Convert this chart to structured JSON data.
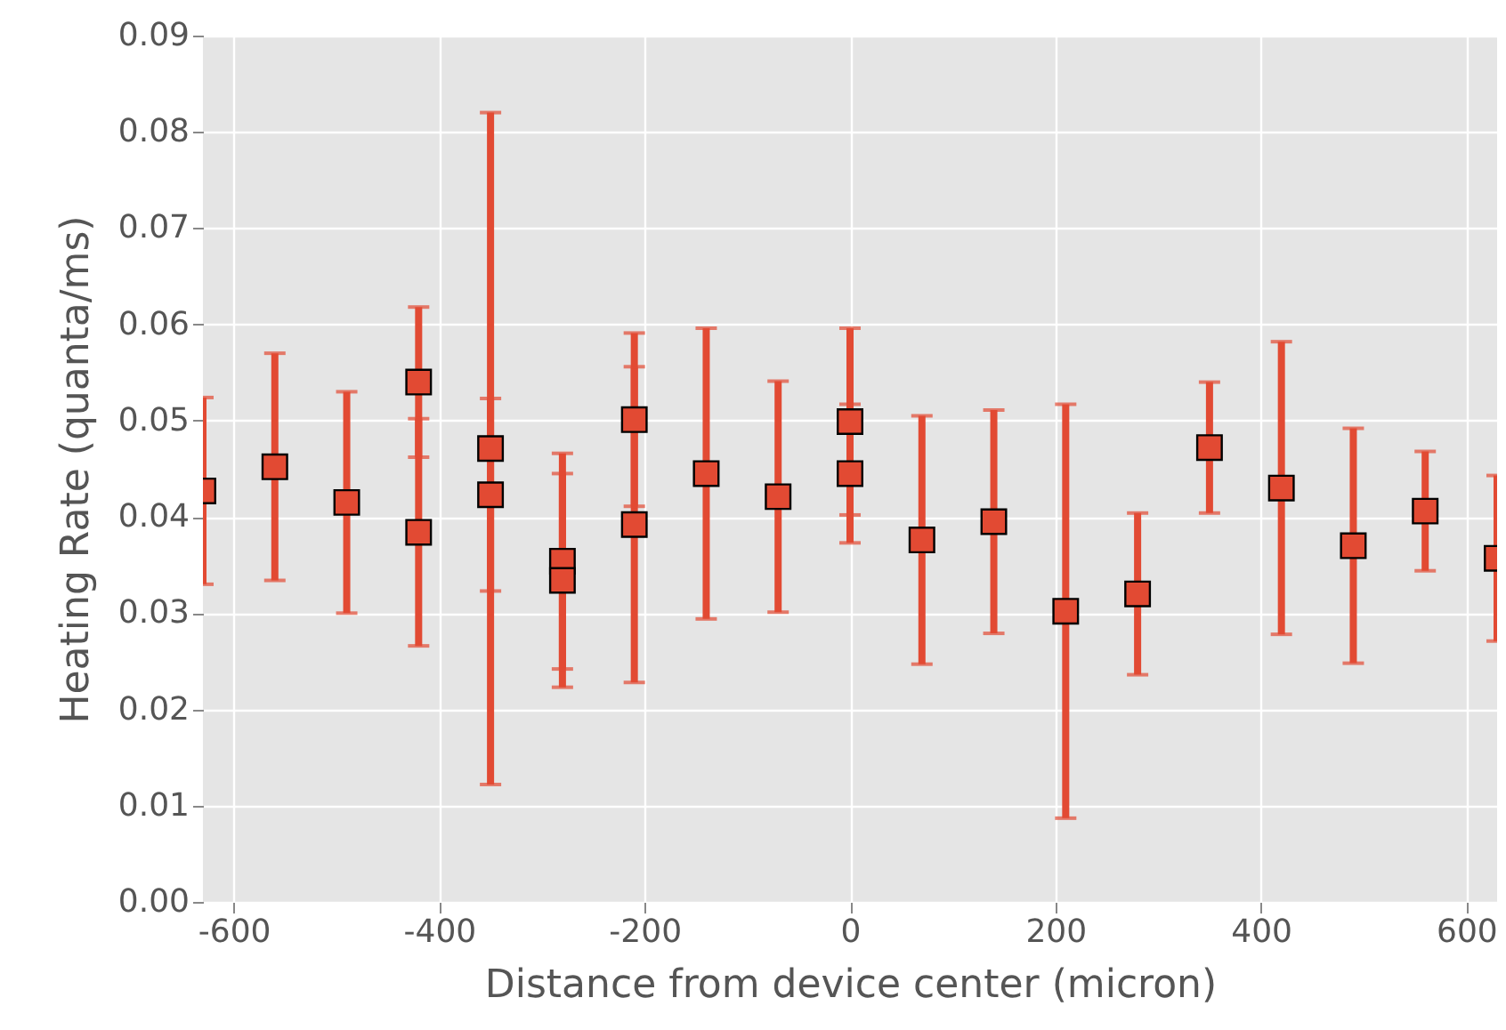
{
  "chart_data": {
    "type": "scatter",
    "xlabel": "Distance from device center (micron)",
    "ylabel": "Heating Rate (quanta/ms)",
    "x": [
      -630,
      -560,
      -490,
      -420,
      -420,
      -350,
      -350,
      -280,
      -280,
      -210,
      -210,
      -140,
      -70,
      0,
      0,
      70,
      140,
      210,
      280,
      350,
      420,
      490,
      560,
      630
    ],
    "series": [
      {
        "color": "#e24a33",
        "values": [
          0.0427,
          0.0452,
          0.0415,
          0.054,
          0.0384,
          0.0471,
          0.0423,
          0.0354,
          0.0334,
          0.0501,
          0.0392,
          0.0445,
          0.0421,
          0.0499,
          0.0445,
          0.0376,
          0.0395,
          0.0302,
          0.032,
          0.0472,
          0.043,
          0.037,
          0.0406,
          0.0357
        ],
        "errors": [
          0.0097,
          0.0118,
          0.0115,
          0.0078,
          0.0118,
          0.0349,
          0.01,
          0.0112,
          0.0111,
          0.009,
          0.0164,
          0.0151,
          0.012,
          0.0097,
          0.0072,
          0.0129,
          0.0116,
          0.0215,
          0.0084,
          0.0068,
          0.0152,
          0.0122,
          0.0062,
          0.0086
        ]
      }
    ],
    "marker": "square",
    "grid": true,
    "xlim": [
      -630,
      630
    ],
    "xticks": [
      -600,
      -400,
      -200,
      0,
      200,
      400,
      600
    ],
    "ylim": [
      0,
      0.09
    ],
    "yticks": [
      {
        "value": 0,
        "label": "0.00"
      },
      {
        "value": 0.01,
        "label": "0.01"
      },
      {
        "value": 0.02,
        "label": "0.02"
      },
      {
        "value": 0.03,
        "label": "0.03"
      },
      {
        "value": 0.04,
        "label": "0.04"
      },
      {
        "value": 0.05,
        "label": "0.05"
      },
      {
        "value": 0.06,
        "label": "0.06"
      },
      {
        "value": 0.07,
        "label": "0.07"
      },
      {
        "value": 0.08,
        "label": "0.08"
      },
      {
        "value": 0.09,
        "label": "0.09"
      }
    ]
  }
}
